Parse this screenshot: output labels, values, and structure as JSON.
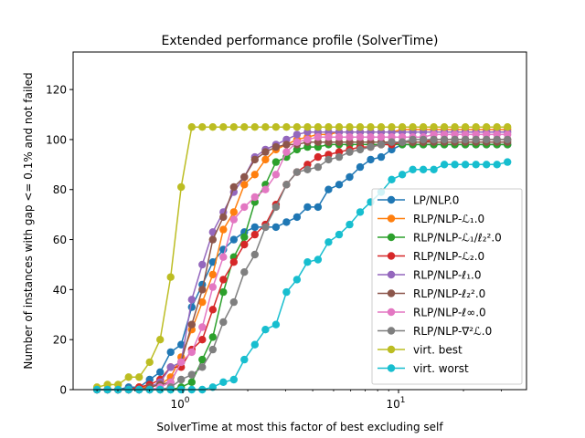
{
  "chart_data": {
    "type": "line",
    "title": "Extended performance profile (SolverTime)",
    "xlabel": "SolverTime at most this factor of best excluding self",
    "ylabel": "Number of instances with gap <= 0.1% and not failed",
    "xscale": "log",
    "xlim": [
      0.31,
      39.2
    ],
    "ylim": [
      0,
      135
    ],
    "yticks": [
      0,
      20,
      40,
      60,
      80,
      100,
      120
    ],
    "yticklabels": [
      "0",
      "20",
      "40",
      "60",
      "80",
      "100",
      "120"
    ],
    "xticks": [
      1,
      10
    ],
    "xticklabels": [
      {
        "base": "10",
        "exp": "0"
      },
      {
        "base": "10",
        "exp": "1"
      }
    ],
    "grid": false,
    "legend_position": "lower-right",
    "x_start": 0.4,
    "x_end": 32,
    "num_points": 40,
    "series": [
      {
        "name": "LP/NLP.0",
        "color": "#1f77b4",
        "values": [
          0,
          0,
          0,
          1,
          1,
          4,
          7,
          15,
          18,
          33,
          42,
          51,
          56,
          60,
          63,
          65,
          65,
          65,
          67,
          69,
          73,
          73,
          80,
          82,
          85,
          89,
          92,
          93,
          96,
          98,
          98,
          98,
          98,
          98,
          98,
          98,
          98,
          98,
          98,
          98
        ]
      },
      {
        "name": "RLP/NLP-ℒ₁.0",
        "color": "#ff7f0e",
        "values": [
          0,
          0,
          0,
          0,
          1,
          1,
          2,
          5,
          13,
          24,
          35,
          46,
          64,
          71,
          82,
          86,
          92,
          96,
          98,
          100,
          101,
          102,
          102,
          103,
          103,
          103,
          103,
          103,
          103,
          104,
          104,
          104,
          104,
          104,
          104,
          104,
          104,
          104,
          104,
          104
        ]
      },
      {
        "name": "RLP/NLP-ℒ₁/ℓ₂².0",
        "color": "#2ca02c",
        "values": [
          0,
          0,
          0,
          0,
          0,
          0,
          0,
          0,
          1,
          3,
          12,
          21,
          39,
          53,
          61,
          75,
          82,
          91,
          93,
          96,
          97,
          97,
          98,
          98,
          98,
          98,
          98,
          98,
          98,
          98,
          98,
          98,
          98,
          98,
          98,
          98,
          98,
          98,
          98,
          98
        ]
      },
      {
        "name": "RLP/NLP-ℒ₂.0",
        "color": "#d62728",
        "values": [
          0,
          0,
          0,
          0,
          1,
          2,
          4,
          9,
          9,
          16,
          20,
          32,
          44,
          51,
          58,
          62,
          66,
          74,
          82,
          87,
          90,
          93,
          94,
          95,
          96,
          97,
          97,
          98,
          98,
          99,
          99,
          99,
          100,
          100,
          100,
          100,
          100,
          100,
          100,
          100
        ]
      },
      {
        "name": "RLP/NLP-ℓ₁.0",
        "color": "#9467bd",
        "values": [
          0,
          0,
          0,
          0,
          0,
          1,
          3,
          9,
          11,
          36,
          50,
          63,
          71,
          79,
          85,
          93,
          96,
          98,
          100,
          102,
          103,
          103,
          103,
          103,
          103,
          103,
          103,
          103,
          103,
          103,
          103,
          103,
          103,
          103,
          103,
          103,
          103,
          103,
          103,
          103
        ]
      },
      {
        "name": "RLP/NLP-ℓ₂².0",
        "color": "#8c564b",
        "values": [
          0,
          0,
          0,
          0,
          0,
          1,
          2,
          3,
          11,
          26,
          40,
          60,
          69,
          81,
          85,
          92,
          95,
          97,
          98,
          98,
          99,
          99,
          99,
          99,
          99,
          99,
          99,
          99,
          99,
          99,
          99,
          99,
          99,
          99,
          99,
          99,
          99,
          99,
          99,
          99
        ]
      },
      {
        "name": "RLP/NLP-ℓ∞.0",
        "color": "#e377c2",
        "values": [
          0,
          0,
          0,
          0,
          0,
          0,
          1,
          3,
          11,
          15,
          25,
          41,
          53,
          68,
          73,
          77,
          80,
          86,
          95,
          99,
          100,
          101,
          101,
          101,
          101,
          101,
          101,
          101,
          101,
          101,
          101,
          101,
          102,
          102,
          102,
          102,
          102,
          102,
          102,
          102
        ]
      },
      {
        "name": "RLP/NLP-∇²ℒ.0",
        "color": "#7f7f7f",
        "values": [
          0,
          0,
          0,
          0,
          0,
          0,
          0,
          1,
          4,
          6,
          9,
          16,
          27,
          35,
          47,
          54,
          65,
          73,
          82,
          87,
          88,
          89,
          92,
          93,
          95,
          96,
          97,
          98,
          99,
          99,
          100,
          100,
          100,
          100,
          100,
          100,
          100,
          100,
          100,
          100
        ]
      },
      {
        "name": "virt. best",
        "color": "#bcbd22",
        "values": [
          1,
          2,
          2,
          5,
          5,
          11,
          20,
          45,
          81,
          105,
          105,
          105,
          105,
          105,
          105,
          105,
          105,
          105,
          105,
          105,
          105,
          105,
          105,
          105,
          105,
          105,
          105,
          105,
          105,
          105,
          105,
          105,
          105,
          105,
          105,
          105,
          105,
          105,
          105,
          105
        ]
      },
      {
        "name": "virt. worst",
        "color": "#17becf",
        "values": [
          0,
          0,
          0,
          0,
          0,
          0,
          0,
          0,
          0,
          0,
          0,
          1,
          3,
          4,
          12,
          18,
          24,
          26,
          39,
          44,
          51,
          52,
          59,
          62,
          66,
          71,
          75,
          79,
          84,
          86,
          88,
          88,
          88,
          90,
          90,
          90,
          90,
          90,
          90,
          91
        ]
      }
    ]
  }
}
